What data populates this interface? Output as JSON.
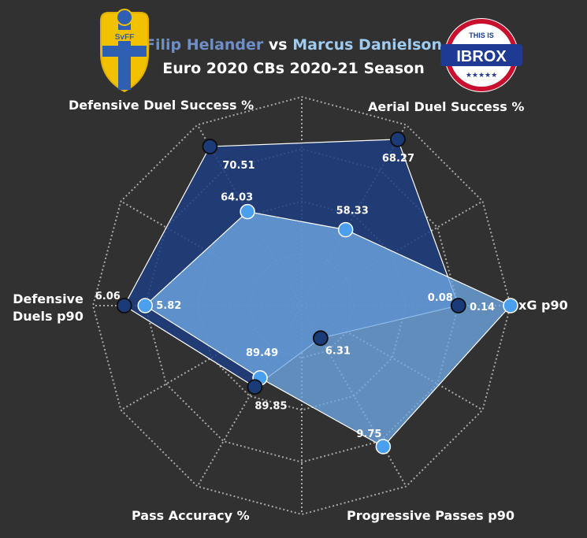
{
  "title": {
    "player1": "Filip Helander",
    "vs": "vs",
    "player2": "Marcus Danielson",
    "subtitle": "Euro 2020 CBs 2020-21 Season"
  },
  "logos": {
    "left": {
      "text": "SvFF",
      "name": "swedish-fa-crest"
    },
    "right": {
      "top_text": "THIS IS",
      "main_text": "IBROX",
      "stars": "★★★★★"
    }
  },
  "colors": {
    "background": "#313131",
    "player1_fill": "#1e3e80",
    "player1_marker": "#1a3a78",
    "player2_fill": "#6fa8e6",
    "player2_marker": "#4aa0ee",
    "grid": "#bdbdbd"
  },
  "chart_data": {
    "type": "radar",
    "axes": [
      {
        "name": "xG p90",
        "label_lines": [
          "xG p90"
        ]
      },
      {
        "name": "Aerial Duel Success %",
        "label_lines": [
          "Aerial Duel Success %"
        ]
      },
      {
        "name": "Defensive Duel Success %",
        "label_lines": [
          "Defensive Duel Success %"
        ]
      },
      {
        "name": "Defensive Duels p90",
        "label_lines": [
          "Defensive",
          "Duels p90"
        ]
      },
      {
        "name": "Pass Accuracy %",
        "label_lines": [
          "Pass Accuracy %"
        ]
      },
      {
        "name": "Progressive Passes p90",
        "label_lines": [
          "Progressive Passes p90"
        ]
      }
    ],
    "grid": true,
    "series": [
      {
        "name": "Filip Helander",
        "values": [
          0.08,
          68.27,
          70.51,
          6.06,
          89.85,
          6.31
        ],
        "labels": [
          "0.08",
          "68.27",
          "70.51",
          "6.06",
          "89.85",
          "6.31"
        ],
        "radius_fraction": [
          0.75,
          0.92,
          0.88,
          0.85,
          0.45,
          0.18
        ]
      },
      {
        "name": "Marcus Danielson",
        "values": [
          0.14,
          58.33,
          64.03,
          5.82,
          89.49,
          9.75
        ],
        "labels": [
          "0.14",
          "58.33",
          "64.03",
          "5.82",
          "89.49",
          "9.75"
        ],
        "radius_fraction": [
          1.0,
          0.42,
          0.52,
          0.75,
          0.4,
          0.78
        ]
      }
    ]
  }
}
